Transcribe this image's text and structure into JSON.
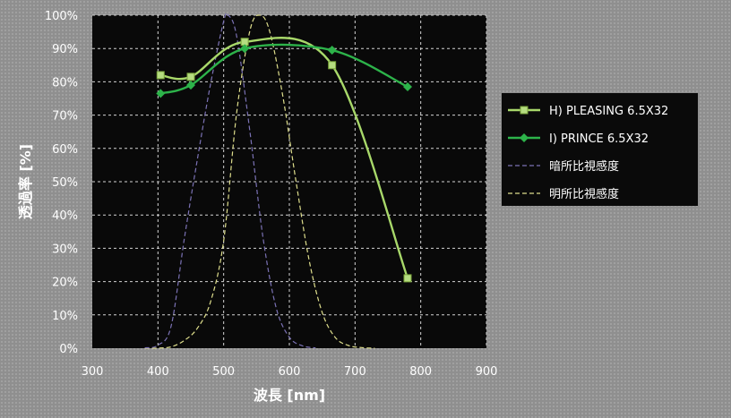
{
  "chart_data": {
    "type": "line",
    "xlabel": "波長 [nm]",
    "ylabel": "透過率 [%]",
    "xlim": [
      300,
      900
    ],
    "ylim": [
      0,
      100
    ],
    "x_ticks": [
      "300",
      "400",
      "500",
      "600",
      "700",
      "800",
      "900"
    ],
    "y_ticks": [
      "0%",
      "10%",
      "20%",
      "30%",
      "40%",
      "50%",
      "60%",
      "70%",
      "80%",
      "90%",
      "100%"
    ],
    "grid": true,
    "legend_position": "right",
    "series": [
      {
        "name": "H) PLEASING 6.5X32",
        "style": "solid",
        "marker": "square",
        "color": "#a8d86a",
        "x": [
          404,
          450,
          532,
          665,
          780
        ],
        "y": [
          82,
          81.5,
          92,
          85,
          21
        ]
      },
      {
        "name": "I) PRINCE 6.5X32",
        "style": "solid",
        "marker": "diamond",
        "color": "#2db34a",
        "x": [
          404,
          450,
          532,
          665,
          780
        ],
        "y": [
          76.5,
          79,
          90,
          89.5,
          78.5
        ]
      },
      {
        "name": "暗所比視感度",
        "style": "dashed",
        "marker": "none",
        "color": "#7b72b5",
        "x": [
          380,
          400,
          420,
          440,
          460,
          480,
          500,
          507,
          520,
          540,
          560,
          580,
          600,
          620,
          640
        ],
        "y": [
          0.1,
          0.9,
          6.6,
          32.8,
          56.7,
          79.3,
          98.2,
          100,
          93.5,
          65,
          33,
          12.1,
          3.3,
          0.7,
          0.1
        ]
      },
      {
        "name": "明所比視感度",
        "style": "dashed",
        "marker": "none",
        "color": "#dede8c",
        "x": [
          380,
          400,
          420,
          440,
          460,
          480,
          500,
          520,
          540,
          555,
          570,
          590,
          610,
          630,
          650,
          670,
          690,
          710,
          730
        ],
        "y": [
          0,
          0.04,
          0.4,
          2.3,
          6,
          13.9,
          32.3,
          71,
          95.4,
          100,
          95.2,
          75.7,
          50.3,
          26.5,
          10.7,
          3.2,
          0.8,
          0.2,
          0
        ]
      }
    ]
  }
}
